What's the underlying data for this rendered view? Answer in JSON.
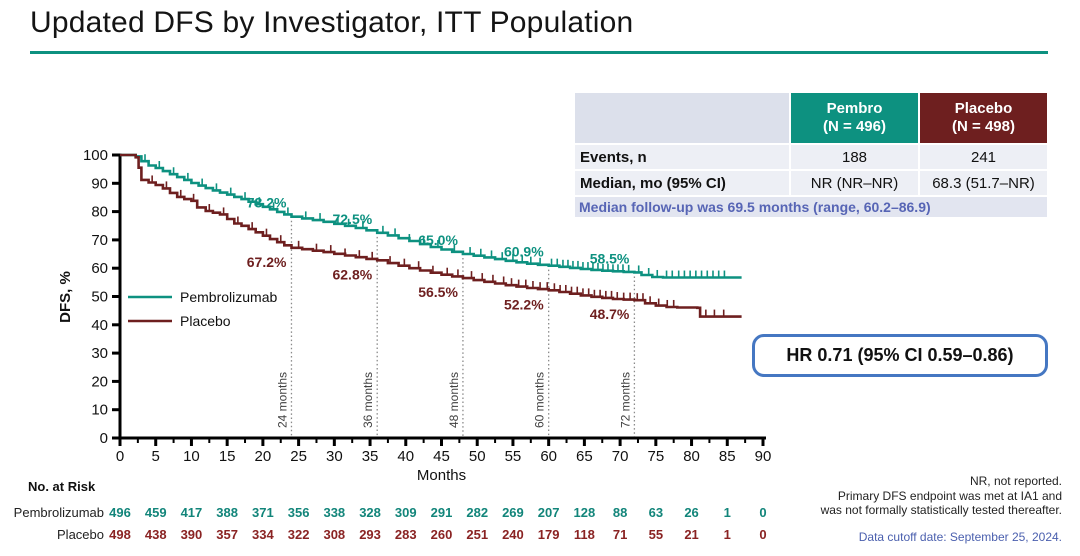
{
  "title": "Updated DFS by Investigator, ITT Population",
  "colors": {
    "teal": "#0d9180",
    "maroon": "#6e1f1f",
    "risk_teal": "#12857a",
    "risk_maroon": "#8a2323",
    "followup_blue": "#5765b5",
    "cutoff_blue": "#4a5fae",
    "hr_border_blue": "#4577c2",
    "title_rule": "#0d9180",
    "landmark_line_gray": "#8a8a8a",
    "landmark_text_gray": "#3f3f3f"
  },
  "summary_table": {
    "corner_label": "",
    "columns": [
      {
        "name": "Pembro",
        "n_label": "(N = 496)",
        "color": "#0d9180"
      },
      {
        "name": "Placebo",
        "n_label": "(N = 498)",
        "color": "#6e1f1f"
      }
    ],
    "rows": [
      {
        "label": "Events, n",
        "values": [
          "188",
          "241"
        ]
      },
      {
        "label": "Median, mo (95% CI)",
        "values": [
          "NR (NR–NR)",
          "68.3 (51.7–NR)"
        ]
      }
    ],
    "followup_note": "Median follow-up was 69.5 months (range, 60.2–86.9)"
  },
  "hr_box": {
    "text": "HR 0.71 (95% CI 0.59–0.86)"
  },
  "chart_data": {
    "type": "line",
    "subtype": "kaplan-meier-step",
    "title": "",
    "xlabel": "Months",
    "ylabel": "DFS, %",
    "xlim": [
      0,
      90
    ],
    "ylim": [
      0,
      100
    ],
    "xticks": [
      0,
      5,
      10,
      15,
      20,
      25,
      30,
      35,
      40,
      45,
      50,
      55,
      60,
      65,
      70,
      75,
      80,
      85,
      90
    ],
    "yticks": [
      0,
      10,
      20,
      30,
      40,
      50,
      60,
      70,
      80,
      90,
      100
    ],
    "grid": false,
    "legend_position": "inside-left",
    "landmarks": {
      "months": [
        24,
        36,
        48,
        60,
        72
      ],
      "labels": [
        "24 months",
        "36 months",
        "48 months",
        "60 months",
        "72 months"
      ]
    },
    "series": [
      {
        "name": "Pembrolizumab",
        "color": "#0d9180",
        "landmark_values_pct": [
          78.2,
          72.5,
          65.0,
          60.9,
          58.5
        ],
        "points": [
          [
            0,
            100
          ],
          [
            2.2,
            99.5
          ],
          [
            3,
            97.8
          ],
          [
            4,
            96.3
          ],
          [
            5,
            95.4
          ],
          [
            6,
            94.3
          ],
          [
            7,
            93.2
          ],
          [
            8,
            92.2
          ],
          [
            9,
            91.2
          ],
          [
            10,
            90.1
          ],
          [
            11,
            89.2
          ],
          [
            12,
            88.3
          ],
          [
            13,
            87.5
          ],
          [
            14,
            86.7
          ],
          [
            15,
            86.0
          ],
          [
            16,
            85.2
          ],
          [
            17,
            84.4
          ],
          [
            18,
            83.5
          ],
          [
            19,
            82.6
          ],
          [
            20,
            81.7
          ],
          [
            21,
            80.8
          ],
          [
            22,
            79.9
          ],
          [
            23,
            79.0
          ],
          [
            24,
            78.2
          ],
          [
            25.5,
            77.6
          ],
          [
            27,
            77.0
          ],
          [
            28.5,
            76.4
          ],
          [
            30,
            75.7
          ],
          [
            31.5,
            75.0
          ],
          [
            33,
            74.2
          ],
          [
            34.5,
            73.4
          ],
          [
            36,
            72.5
          ],
          [
            37.5,
            71.6
          ],
          [
            39,
            70.6
          ],
          [
            40.5,
            69.6
          ],
          [
            42,
            68.5
          ],
          [
            43.5,
            67.5
          ],
          [
            45,
            66.6
          ],
          [
            46.5,
            65.8
          ],
          [
            48,
            65.0
          ],
          [
            49.5,
            64.4
          ],
          [
            51,
            63.8
          ],
          [
            52.5,
            63.2
          ],
          [
            54,
            62.6
          ],
          [
            55.5,
            62.1
          ],
          [
            57,
            61.6
          ],
          [
            58.5,
            61.2
          ],
          [
            60,
            60.9
          ],
          [
            61.5,
            60.5
          ],
          [
            63,
            60.1
          ],
          [
            64.5,
            59.7
          ],
          [
            66,
            59.4
          ],
          [
            67.5,
            59.1
          ],
          [
            69,
            58.9
          ],
          [
            70.5,
            58.7
          ],
          [
            72,
            58.5
          ],
          [
            73,
            57.6
          ],
          [
            74.5,
            56.9
          ],
          [
            76,
            56.7
          ],
          [
            87,
            56.7
          ]
        ],
        "censor_months": [
          3.5,
          5.5,
          7.5,
          9.5,
          11.5,
          13.5,
          15.5,
          17.5,
          19.5,
          21.5,
          23.5,
          26,
          28,
          30.5,
          32,
          34,
          36.8,
          38.5,
          40.5,
          42.5,
          44.5,
          46.8,
          49,
          50.5,
          52,
          53.5,
          55,
          56.3,
          57.5,
          58.8,
          60.4,
          61.2,
          62,
          62.7,
          63.4,
          64.1,
          64.8,
          65.5,
          66.2,
          66.9,
          67.6,
          68.3,
          69,
          69.7,
          70.4,
          71.2,
          72.6,
          74,
          75.2,
          76.5,
          77.3,
          78.2,
          79,
          79.8,
          80.6,
          81.4,
          82.2,
          83,
          83.8,
          84.6
        ]
      },
      {
        "name": "Placebo",
        "color": "#6e1f1f",
        "landmark_values_pct": [
          67.2,
          62.8,
          56.5,
          52.2,
          48.7
        ],
        "points": [
          [
            0,
            100
          ],
          [
            2.2,
            99.2
          ],
          [
            2.6,
            95.5
          ],
          [
            3,
            91.2
          ],
          [
            4,
            90.3
          ],
          [
            5,
            89.4
          ],
          [
            6,
            88.2
          ],
          [
            7,
            86.6
          ],
          [
            8,
            85.2
          ],
          [
            9,
            84.4
          ],
          [
            10,
            83.8
          ],
          [
            10.8,
            81.5
          ],
          [
            12,
            80.2
          ],
          [
            13,
            79.6
          ],
          [
            14,
            79.0
          ],
          [
            15,
            77.4
          ],
          [
            16,
            75.8
          ],
          [
            17,
            75.0
          ],
          [
            18,
            73.8
          ],
          [
            19,
            72.7
          ],
          [
            20,
            71.5
          ],
          [
            21,
            70.3
          ],
          [
            22,
            69.2
          ],
          [
            23,
            68.1
          ],
          [
            24,
            67.2
          ],
          [
            25.5,
            66.7
          ],
          [
            27,
            66.2
          ],
          [
            28.5,
            65.7
          ],
          [
            30,
            65.1
          ],
          [
            31.5,
            64.5
          ],
          [
            33,
            63.9
          ],
          [
            34.5,
            63.3
          ],
          [
            36,
            62.8
          ],
          [
            37.5,
            61.8
          ],
          [
            39,
            60.9
          ],
          [
            40.5,
            60.0
          ],
          [
            42,
            59.2
          ],
          [
            43.5,
            58.4
          ],
          [
            45,
            57.7
          ],
          [
            46.5,
            57.1
          ],
          [
            48,
            56.5
          ],
          [
            49.5,
            55.8
          ],
          [
            51,
            55.2
          ],
          [
            52.5,
            54.6
          ],
          [
            54,
            54.0
          ],
          [
            55.5,
            53.5
          ],
          [
            57,
            53.0
          ],
          [
            58.5,
            52.6
          ],
          [
            60,
            52.2
          ],
          [
            61.5,
            51.6
          ],
          [
            63,
            51.0
          ],
          [
            64.5,
            50.4
          ],
          [
            66,
            49.9
          ],
          [
            67.5,
            49.5
          ],
          [
            69,
            49.1
          ],
          [
            70.5,
            48.9
          ],
          [
            72,
            48.7
          ],
          [
            73.5,
            47.6
          ],
          [
            75,
            46.8
          ],
          [
            76.5,
            46.3
          ],
          [
            78,
            46.1
          ],
          [
            80.8,
            46.0
          ],
          [
            81.2,
            42.9
          ],
          [
            87,
            42.9
          ]
        ],
        "censor_months": [
          4.5,
          6.5,
          8.5,
          10.3,
          12.5,
          14.5,
          16.5,
          18.5,
          20.5,
          22.5,
          25,
          27.5,
          29.5,
          31.5,
          33.5,
          35.3,
          37.8,
          39.8,
          41.8,
          43.8,
          45.8,
          47.3,
          49.2,
          50.7,
          52.2,
          53.7,
          54.8,
          55.8,
          56.8,
          57.8,
          58.8,
          59.8,
          60.8,
          61.6,
          62.4,
          63.2,
          64,
          64.8,
          65.6,
          66.4,
          67.2,
          68,
          68.8,
          69.6,
          70.5,
          71.4,
          72.4,
          73.2,
          74.2,
          75.4,
          76.6,
          77.5,
          82,
          83.2,
          84.5
        ]
      }
    ]
  },
  "risk_table": {
    "title": "No. at Risk",
    "months": [
      0,
      5,
      10,
      15,
      20,
      25,
      30,
      35,
      40,
      45,
      50,
      55,
      60,
      65,
      70,
      75,
      80,
      85,
      90
    ],
    "rows": [
      {
        "label": "Pembrolizumab",
        "color": "#12857a",
        "counts": [
          496,
          459,
          417,
          388,
          371,
          356,
          338,
          328,
          309,
          291,
          282,
          269,
          207,
          128,
          88,
          63,
          26,
          1,
          0
        ]
      },
      {
        "label": "Placebo",
        "color": "#8a2323",
        "counts": [
          498,
          438,
          390,
          357,
          334,
          322,
          308,
          293,
          283,
          260,
          251,
          240,
          179,
          118,
          71,
          55,
          21,
          1,
          0
        ]
      }
    ]
  },
  "footnotes": {
    "lines": [
      "NR, not reported.",
      "Primary DFS endpoint was met at IA1 and",
      "was not formally statistically tested thereafter."
    ],
    "cutoff": "Data cutoff date: September 25, 2024."
  }
}
